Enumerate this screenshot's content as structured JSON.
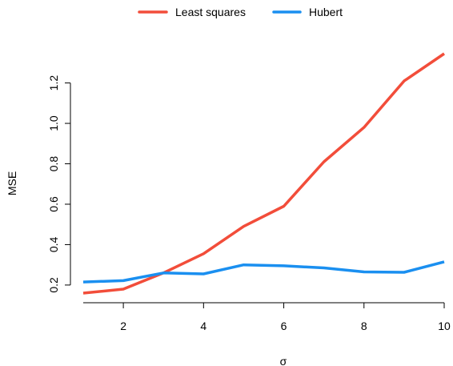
{
  "chart_data": {
    "type": "line",
    "title": "",
    "xlabel": "σ",
    "ylabel": "MSE",
    "x": [
      1,
      2,
      3,
      4,
      5,
      6,
      7,
      8,
      9,
      10
    ],
    "xlim": [
      1,
      10
    ],
    "ylim": [
      0.16,
      1.345
    ],
    "xticks": [
      2,
      4,
      6,
      8,
      10
    ],
    "yticks": [
      0.2,
      0.4,
      0.6,
      0.8,
      1.0,
      1.2
    ],
    "xtick_labels": [
      "2",
      "4",
      "6",
      "8",
      "10"
    ],
    "ytick_labels": [
      "0.2",
      "0.4",
      "0.6",
      "0.8",
      "1.0",
      "1.2"
    ],
    "grid": false,
    "legend_position": "top-center",
    "series": [
      {
        "name": "Least squares",
        "color": "#f24d3a",
        "values": [
          0.16,
          0.18,
          0.26,
          0.355,
          0.49,
          0.59,
          0.81,
          0.98,
          1.21,
          1.345
        ]
      },
      {
        "name": "Hubert",
        "color": "#1a8ff0",
        "values": [
          0.215,
          0.222,
          0.26,
          0.255,
          0.3,
          0.295,
          0.285,
          0.265,
          0.263,
          0.315
        ]
      }
    ]
  }
}
